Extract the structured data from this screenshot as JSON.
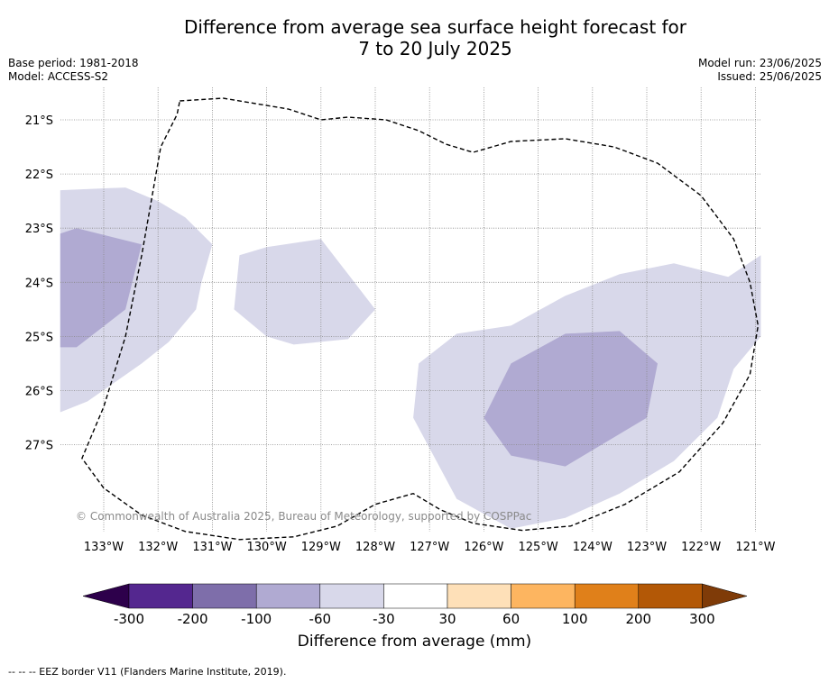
{
  "header": {
    "title_line1": "Difference from average sea surface height forecast for",
    "title_line2": "7 to 20 July 2025",
    "base_period": "Base period: 1981-2018",
    "model": "Model: ACCESS-S2",
    "model_run": "Model run: 23/06/2025",
    "issued": "Issued: 25/06/2025"
  },
  "map": {
    "lon_range": [
      -133.8,
      -120.9
    ],
    "lat_range": [
      -28.4,
      -20.4
    ],
    "lon_ticks": [
      -133,
      -132,
      -131,
      -130,
      -129,
      -128,
      -127,
      -126,
      -125,
      -124,
      -123,
      -122,
      -121
    ],
    "lon_labels": [
      "133°W",
      "132°W",
      "131°W",
      "130°W",
      "129°W",
      "128°W",
      "127°W",
      "126°W",
      "125°W",
      "124°W",
      "123°W",
      "122°W",
      "121°W"
    ],
    "lat_ticks": [
      -21,
      -22,
      -23,
      -24,
      -25,
      -26,
      -27
    ],
    "lat_labels": [
      "21°S",
      "22°S",
      "23°S",
      "24°S",
      "25°S",
      "26°S",
      "27°S"
    ],
    "copyright": "© Commonwealth of Australia 2025, Bureau of Meteorology, supported by COSPPac",
    "anomaly_regions": [
      {
        "class": "-60 to -30",
        "color": "#d8d8ea",
        "outline": [
          [
            -133.8,
            -22.3
          ],
          [
            -132.6,
            -22.25
          ],
          [
            -132.0,
            -22.5
          ],
          [
            -131.5,
            -22.8
          ],
          [
            -131.0,
            -23.3
          ],
          [
            -131.2,
            -24.0
          ],
          [
            -131.3,
            -24.5
          ],
          [
            -131.8,
            -25.1
          ],
          [
            -132.3,
            -25.5
          ],
          [
            -133.3,
            -26.2
          ],
          [
            -133.8,
            -26.4
          ]
        ]
      },
      {
        "class": "-60 to -30",
        "color": "#d8d8ea",
        "outline": [
          [
            -130.5,
            -23.5
          ],
          [
            -130.0,
            -23.35
          ],
          [
            -129.0,
            -23.2
          ],
          [
            -128.0,
            -24.5
          ],
          [
            -128.5,
            -25.05
          ],
          [
            -129.5,
            -25.15
          ],
          [
            -130.0,
            -25.0
          ],
          [
            -130.6,
            -24.5
          ]
        ]
      },
      {
        "class": "-60 to -30",
        "color": "#d8d8ea",
        "outline": [
          [
            -127.2,
            -25.5
          ],
          [
            -126.5,
            -24.95
          ],
          [
            -125.5,
            -24.8
          ],
          [
            -124.5,
            -24.25
          ],
          [
            -123.5,
            -23.85
          ],
          [
            -122.5,
            -23.65
          ],
          [
            -121.5,
            -23.9
          ],
          [
            -120.9,
            -23.5
          ],
          [
            -120.9,
            -25.0
          ],
          [
            -121.4,
            -25.6
          ],
          [
            -121.7,
            -26.5
          ],
          [
            -122.5,
            -27.3
          ],
          [
            -123.5,
            -27.9
          ],
          [
            -124.5,
            -28.35
          ],
          [
            -125.5,
            -28.55
          ],
          [
            -126.5,
            -28.0
          ],
          [
            -127.3,
            -26.5
          ]
        ]
      },
      {
        "class": "-100 to -60",
        "color": "#b0aad2",
        "outline": [
          [
            -133.8,
            -23.1
          ],
          [
            -133.5,
            -23.0
          ],
          [
            -132.3,
            -23.3
          ],
          [
            -132.6,
            -24.5
          ],
          [
            -133.5,
            -25.2
          ],
          [
            -133.8,
            -25.2
          ]
        ]
      },
      {
        "class": "-100 to -60",
        "color": "#b0aad2",
        "outline": [
          [
            -126.0,
            -26.5
          ],
          [
            -125.5,
            -25.5
          ],
          [
            -124.5,
            -24.95
          ],
          [
            -123.5,
            -24.9
          ],
          [
            -122.8,
            -25.5
          ],
          [
            -123.0,
            -26.5
          ],
          [
            -124.5,
            -27.4
          ],
          [
            -125.5,
            -27.2
          ]
        ]
      }
    ],
    "eez_border": [
      [
        -131.6,
        -20.65
      ],
      [
        -130.8,
        -20.6
      ],
      [
        -130.2,
        -20.7
      ],
      [
        -129.6,
        -20.8
      ],
      [
        -129.0,
        -21.0
      ],
      [
        -128.5,
        -20.95
      ],
      [
        -127.8,
        -21.0
      ],
      [
        -127.2,
        -21.2
      ],
      [
        -126.7,
        -21.45
      ],
      [
        -126.2,
        -21.6
      ],
      [
        -125.5,
        -21.4
      ],
      [
        -124.5,
        -21.35
      ],
      [
        -123.6,
        -21.5
      ],
      [
        -122.8,
        -21.8
      ],
      [
        -122.0,
        -22.4
      ],
      [
        -121.4,
        -23.2
      ],
      [
        -121.1,
        -24.0
      ],
      [
        -120.95,
        -24.8
      ],
      [
        -121.1,
        -25.7
      ],
      [
        -121.6,
        -26.6
      ],
      [
        -122.4,
        -27.5
      ],
      [
        -123.4,
        -28.1
      ],
      [
        -124.4,
        -28.5
      ],
      [
        -125.3,
        -28.58
      ],
      [
        -126.2,
        -28.45
      ],
      [
        -126.8,
        -28.2
      ],
      [
        -127.3,
        -27.9
      ],
      [
        -128.0,
        -28.1
      ],
      [
        -128.7,
        -28.5
      ],
      [
        -129.5,
        -28.7
      ],
      [
        -130.5,
        -28.75
      ],
      [
        -131.5,
        -28.6
      ],
      [
        -132.3,
        -28.3
      ],
      [
        -133.0,
        -27.8
      ],
      [
        -133.4,
        -27.25
      ],
      [
        -133.0,
        -26.3
      ],
      [
        -132.6,
        -25.0
      ],
      [
        -132.3,
        -23.5
      ],
      [
        -131.95,
        -21.5
      ],
      [
        -131.65,
        -20.9
      ]
    ]
  },
  "colorbar": {
    "title": "Difference from average (mm)",
    "tick_labels": [
      "-300",
      "-200",
      "-100",
      "-60",
      "-30",
      "30",
      "60",
      "100",
      "200",
      "300"
    ],
    "colors": [
      "#54278f",
      "#7e6eaa",
      "#b0aad2",
      "#d8d8ea",
      "#ffffff",
      "#fee0b8",
      "#fdb560",
      "#e0801a",
      "#b35806"
    ],
    "under_color": "#2d004b",
    "over_color": "#7f3b08"
  },
  "footnote": "--  --  -- EEZ border V11 (Flanders Marine Institute, 2019)."
}
